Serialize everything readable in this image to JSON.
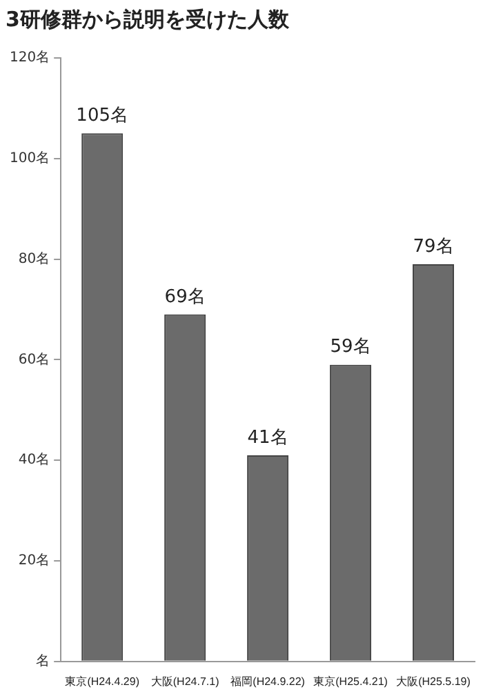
{
  "chart_data": {
    "type": "bar",
    "title": "3研修群から説明を受けた人数",
    "categories": [
      "東京(H24.4.29)",
      "大阪(H24.7.1)",
      "福岡(H24.9.22)",
      "東京(H25.4.21)",
      "大阪(H25.5.19)"
    ],
    "values": [
      105,
      69,
      41,
      59,
      79
    ],
    "value_labels": [
      "105名",
      "69名",
      "41名",
      "59名",
      "79名"
    ],
    "color": "#6b6b6b",
    "ylim": [
      0,
      120
    ],
    "yticks": [
      {
        "value": 0,
        "label": "名"
      },
      {
        "value": 20,
        "label": "20名"
      },
      {
        "value": 40,
        "label": "40名"
      },
      {
        "value": 60,
        "label": "60名"
      },
      {
        "value": 80,
        "label": "80名"
      },
      {
        "value": 100,
        "label": "100名"
      },
      {
        "value": 120,
        "label": "120名"
      }
    ],
    "grid": false,
    "legend": false
  }
}
